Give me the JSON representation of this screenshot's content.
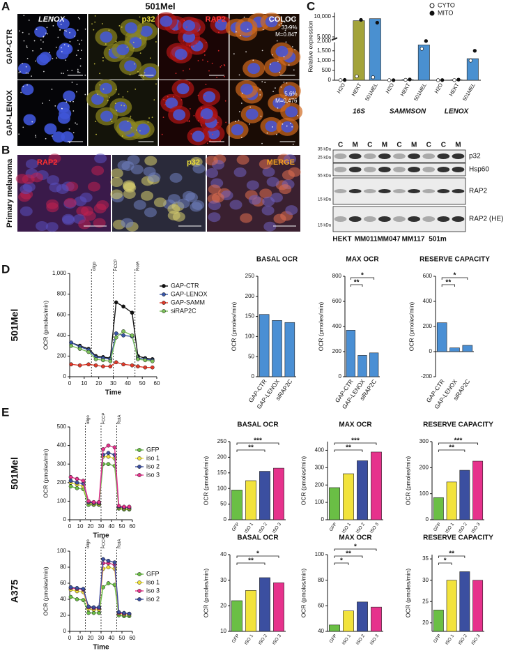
{
  "panel_labels": [
    "A",
    "B",
    "C",
    "D",
    "E"
  ],
  "panel_a": {
    "title": "501Mel",
    "rows": [
      "GAP-CTR",
      "GAP-LENOX"
    ],
    "columns": [
      "LENOX",
      "p32",
      "RAP2",
      "COLOC"
    ],
    "coloc": [
      [
        "33.9%",
        "M=0.847"
      ],
      [
        "5.6%",
        "M=0.476"
      ]
    ]
  },
  "panel_b": {
    "row": "Primary melanoma",
    "columns": [
      "RAP2",
      "p32",
      "MERGE"
    ]
  },
  "western_blot": {
    "lanes": [
      "C",
      "M",
      "C",
      "M",
      "C",
      "M",
      "C",
      "C",
      "M"
    ],
    "markers": [
      "35 kDa",
      "25 kDa",
      "55 kDa",
      "15 kDa",
      "15 kDa"
    ],
    "proteins": [
      "p32",
      "Hsp60",
      "RAP2",
      "RAP2 (HE)"
    ],
    "samples": [
      "HEKT",
      "MM011",
      "MM047",
      "MM117",
      "501m"
    ]
  },
  "chart_data": [
    {
      "type": "bar",
      "ylabel": "Relative expression",
      "categories": [
        "H2O",
        "HEKT",
        "501MEL",
        "H2O",
        "HEKT",
        "501MEL",
        "H2O",
        "HEKT",
        "501MEL"
      ],
      "groups": [
        "16S",
        "SAMMSON",
        "LENOX"
      ],
      "values": [
        10,
        9000,
        9500,
        5,
        30,
        1800,
        5,
        20,
        1100
      ],
      "colors": [
        "#ffffff",
        "#a3a33a",
        "#4a90d0",
        "#ffffff",
        "#4a90d0",
        "#4a90d0",
        "#ffffff",
        "#4a90d0",
        "#4a90d0"
      ],
      "series": [
        {
          "name": "CYTO",
          "values": [
            5,
            200,
            150,
            5,
            20,
            1600,
            3,
            10,
            1000
          ]
        },
        {
          "name": "MITO",
          "values": [
            15,
            9200,
            8500,
            5,
            40,
            2000,
            7,
            30,
            1500
          ]
        }
      ],
      "ylim": [
        0,
        11000
      ],
      "axis_break": [
        2000,
        5000
      ],
      "yticks": [
        0,
        500,
        {
          "value": 1000,
          "label": "1,000"
        },
        {
          "value": 1500,
          "label": "1,500"
        },
        {
          "value": 2000,
          "label": "2,000"
        },
        {
          "value": 5000,
          "label": "5,000"
        },
        {
          "value": 10000,
          "label": "10,000"
        }
      ]
    },
    {
      "type": "line",
      "row_label": "501Mel",
      "xlabel": "Time",
      "ylabel": "OCR (pmoles/min)",
      "x": [
        1,
        7,
        13,
        18,
        23,
        28,
        32,
        37,
        43,
        47,
        52,
        57
      ],
      "xlim": [
        0,
        60
      ],
      "xticks": [
        0,
        10,
        20,
        30,
        40,
        50,
        60
      ],
      "ylim": [
        0,
        1000
      ],
      "yticks": [
        0,
        200,
        400,
        600,
        800,
        {
          "value": 1000,
          "label": "1,000"
        }
      ],
      "events": [
        {
          "label": "oligo",
          "x": 15
        },
        {
          "label": "FCCP",
          "x": 30
        },
        {
          "label": "RotA",
          "x": 45
        }
      ],
      "series": [
        {
          "name": "GAP-CTR",
          "color": "#111111",
          "values": [
            330,
            300,
            270,
            200,
            190,
            180,
            720,
            680,
            620,
            200,
            180,
            170
          ]
        },
        {
          "name": "GAP-LENOX",
          "color": "#3a57a8",
          "values": [
            330,
            290,
            260,
            190,
            180,
            170,
            420,
            400,
            390,
            180,
            170,
            160
          ]
        },
        {
          "name": "GAP-SAMM",
          "color": "#e03a2a",
          "values": [
            120,
            110,
            120,
            110,
            100,
            100,
            140,
            120,
            110,
            100,
            90,
            90
          ]
        },
        {
          "name": "siRAP2C",
          "color": "#7cc05a",
          "values": [
            300,
            270,
            240,
            170,
            160,
            150,
            380,
            440,
            400,
            170,
            160,
            150
          ]
        }
      ]
    },
    {
      "type": "bar",
      "title": "BASAL OCR",
      "ylabel": "OCR (pmoles/min)",
      "categories": [
        "GAP-CTR",
        "GAP-LENOX",
        "siRAP2C"
      ],
      "values": [
        155,
        140,
        135
      ],
      "color": "#4a8fd4",
      "ylim": [
        0,
        250
      ],
      "yticks": [
        0,
        50,
        100,
        150,
        200,
        250
      ],
      "significance": []
    },
    {
      "type": "bar",
      "title": "MAX OCR",
      "ylabel": "OCR (pmoles/min)",
      "categories": [
        "GAP-CTR",
        "GAP-LENOX",
        "siRAP2C"
      ],
      "values": [
        370,
        170,
        190
      ],
      "color": "#4a8fd4",
      "ylim": [
        0,
        800
      ],
      "yticks": [
        0,
        200,
        400,
        600,
        800
      ],
      "significance": [
        {
          "from": 0,
          "to": 1,
          "label": "**"
        },
        {
          "from": 0,
          "to": 2,
          "label": "*"
        }
      ]
    },
    {
      "type": "bar",
      "title": "RESERVE CAPACITY",
      "ylabel": "OCR (pmoles/min)",
      "categories": [
        "GAP-CTR",
        "GAP-LENOX",
        "siRAP2C"
      ],
      "values": [
        230,
        30,
        50
      ],
      "color": "#4a8fd4",
      "ylim": [
        -200,
        600
      ],
      "yticks": [
        -200,
        0,
        200,
        400,
        600
      ],
      "significance": [
        {
          "from": 0,
          "to": 1,
          "label": "**"
        },
        {
          "from": 0,
          "to": 2,
          "label": "*"
        }
      ]
    },
    {
      "type": "line",
      "row_label": "501Mel",
      "xlabel": "Time",
      "ylabel": "OCR (pmoles/min)",
      "x": [
        1,
        7,
        13,
        18,
        23,
        28,
        32,
        37,
        43,
        47,
        52,
        57
      ],
      "xlim": [
        0,
        60
      ],
      "xticks": [
        0,
        10,
        20,
        30,
        40,
        50,
        60
      ],
      "ylim": [
        0,
        500
      ],
      "yticks": [
        0,
        100,
        200,
        300,
        400,
        500
      ],
      "events": [
        {
          "label": "oligo",
          "x": 15
        },
        {
          "label": "FCCP",
          "x": 30
        },
        {
          "label": "RotA",
          "x": 45
        }
      ],
      "series": [
        {
          "name": "GFP",
          "color": "#6abf45",
          "values": [
            180,
            170,
            165,
            80,
            80,
            80,
            300,
            300,
            290,
            60,
            55,
            55
          ]
        },
        {
          "name": "iso 1",
          "color": "#f2e33c",
          "values": [
            200,
            190,
            180,
            90,
            85,
            85,
            340,
            340,
            330,
            65,
            60,
            60
          ]
        },
        {
          "name": "iso 2",
          "color": "#3b4fa0",
          "values": [
            210,
            200,
            195,
            95,
            90,
            90,
            350,
            360,
            350,
            70,
            65,
            65
          ]
        },
        {
          "name": "iso 3",
          "color": "#e6328c",
          "values": [
            230,
            220,
            210,
            100,
            95,
            95,
            380,
            400,
            390,
            75,
            70,
            70
          ]
        }
      ]
    },
    {
      "type": "bar",
      "title": "BASAL OCR",
      "ylabel": "OCR (pmoles/min)",
      "categories": [
        "GFP",
        "ISO 1",
        "ISO 2",
        "ISO 3"
      ],
      "values": [
        95,
        125,
        155,
        165
      ],
      "colors": [
        "#6abf45",
        "#f2e33c",
        "#3b4fa0",
        "#e6328c"
      ],
      "ylim": [
        0,
        250
      ],
      "yticks": [
        0,
        50,
        100,
        150,
        200,
        250
      ],
      "significance": [
        {
          "from": 0,
          "to": 2,
          "label": "**"
        },
        {
          "from": 0,
          "to": 3,
          "label": "***"
        }
      ]
    },
    {
      "type": "bar",
      "title": "MAX OCR",
      "ylabel": "OCR (pmoles/min)",
      "categories": [
        "GFP",
        "ISO 1",
        "ISO 2",
        "ISO 3"
      ],
      "values": [
        185,
        265,
        340,
        390
      ],
      "colors": [
        "#6abf45",
        "#f2e33c",
        "#3b4fa0",
        "#e6328c"
      ],
      "ylim": [
        0,
        450
      ],
      "yticks": [
        0,
        100,
        200,
        300,
        400
      ],
      "significance": [
        {
          "from": 0,
          "to": 2,
          "label": "**"
        },
        {
          "from": 0,
          "to": 3,
          "label": "***"
        }
      ]
    },
    {
      "type": "bar",
      "title": "RESERVE CAPACITY",
      "ylabel": "OCR (pmoles/min)",
      "categories": [
        "GFP",
        "ISO 1",
        "ISO 2",
        "ISO 3"
      ],
      "values": [
        85,
        145,
        190,
        225
      ],
      "colors": [
        "#6abf45",
        "#f2e33c",
        "#3b4fa0",
        "#e6328c"
      ],
      "ylim": [
        0,
        300
      ],
      "yticks": [
        0,
        100,
        200,
        300
      ],
      "significance": [
        {
          "from": 0,
          "to": 2,
          "label": "**"
        },
        {
          "from": 0,
          "to": 3,
          "label": "***"
        }
      ]
    },
    {
      "type": "line",
      "row_label": "A375",
      "xlabel": "Time",
      "ylabel": "OCR (pmoles/min)",
      "x": [
        1,
        7,
        13,
        18,
        23,
        28,
        32,
        37,
        43,
        47,
        52,
        57
      ],
      "xlim": [
        0,
        60
      ],
      "xticks": [
        0,
        10,
        20,
        30,
        40,
        50,
        60
      ],
      "ylim": [
        0,
        100
      ],
      "yticks": [
        0,
        20,
        40,
        60,
        80,
        100
      ],
      "events": [
        {
          "label": "oligo",
          "x": 15
        },
        {
          "label": "FCCP",
          "x": 30
        },
        {
          "label": "RotA",
          "x": 45
        }
      ],
      "series": [
        {
          "name": "GFP",
          "color": "#6abf45",
          "values": [
            43,
            40,
            39,
            23,
            23,
            23,
            55,
            60,
            58,
            20,
            19,
            19
          ]
        },
        {
          "name": "iso 1",
          "color": "#f2e33c",
          "values": [
            52,
            50,
            49,
            28,
            27,
            27,
            78,
            80,
            78,
            22,
            21,
            21
          ]
        },
        {
          "name": "iso 3",
          "color": "#e6328c",
          "values": [
            54,
            53,
            52,
            30,
            29,
            29,
            85,
            85,
            83,
            23,
            22,
            22
          ]
        },
        {
          "name": "iso 2",
          "color": "#3b4fa0",
          "values": [
            55,
            54,
            53,
            31,
            30,
            30,
            90,
            88,
            86,
            24,
            23,
            22
          ]
        }
      ]
    },
    {
      "type": "bar",
      "title": "BASAL OCR",
      "ylabel": "OCR (pmoles/min)",
      "categories": [
        "GFP",
        "ISO 1",
        "ISO 2",
        "ISO 3"
      ],
      "values": [
        22,
        26,
        31,
        29
      ],
      "colors": [
        "#6abf45",
        "#f2e33c",
        "#3b4fa0",
        "#e6328c"
      ],
      "ylim": [
        10,
        40
      ],
      "yticks": [
        10,
        20,
        30,
        40
      ],
      "significance": [
        {
          "from": 0,
          "to": 2,
          "label": "**"
        },
        {
          "from": 0,
          "to": 3,
          "label": "*"
        }
      ]
    },
    {
      "type": "bar",
      "title": "MAX OCR",
      "ylabel": "OCR (pmoles/min)",
      "categories": [
        "GFP",
        "ISO 1",
        "ISO 2",
        "ISO 3"
      ],
      "values": [
        45,
        56,
        63,
        59
      ],
      "colors": [
        "#6abf45",
        "#f2e33c",
        "#3b4fa0",
        "#e6328c"
      ],
      "ylim": [
        40,
        100
      ],
      "yticks": [
        40,
        60,
        80,
        100
      ],
      "significance": [
        {
          "from": 0,
          "to": 1,
          "label": "*"
        },
        {
          "from": 0,
          "to": 2,
          "label": "**"
        },
        {
          "from": 0,
          "to": 3,
          "label": "*"
        }
      ]
    },
    {
      "type": "bar",
      "title": "RESERVE CAPACITY",
      "ylabel": "OCR (pmoles/min)",
      "categories": [
        "GFP",
        "ISO 1",
        "ISO 2",
        "ISO 3"
      ],
      "values": [
        23,
        30,
        32,
        30
      ],
      "colors": [
        "#6abf45",
        "#f2e33c",
        "#3b4fa0",
        "#e6328c"
      ],
      "ylim": [
        18,
        36
      ],
      "yticks": [
        20,
        25,
        30,
        35
      ],
      "significance": [
        {
          "from": 0,
          "to": 1,
          "label": "*"
        },
        {
          "from": 0,
          "to": 2,
          "label": "**"
        }
      ]
    }
  ]
}
